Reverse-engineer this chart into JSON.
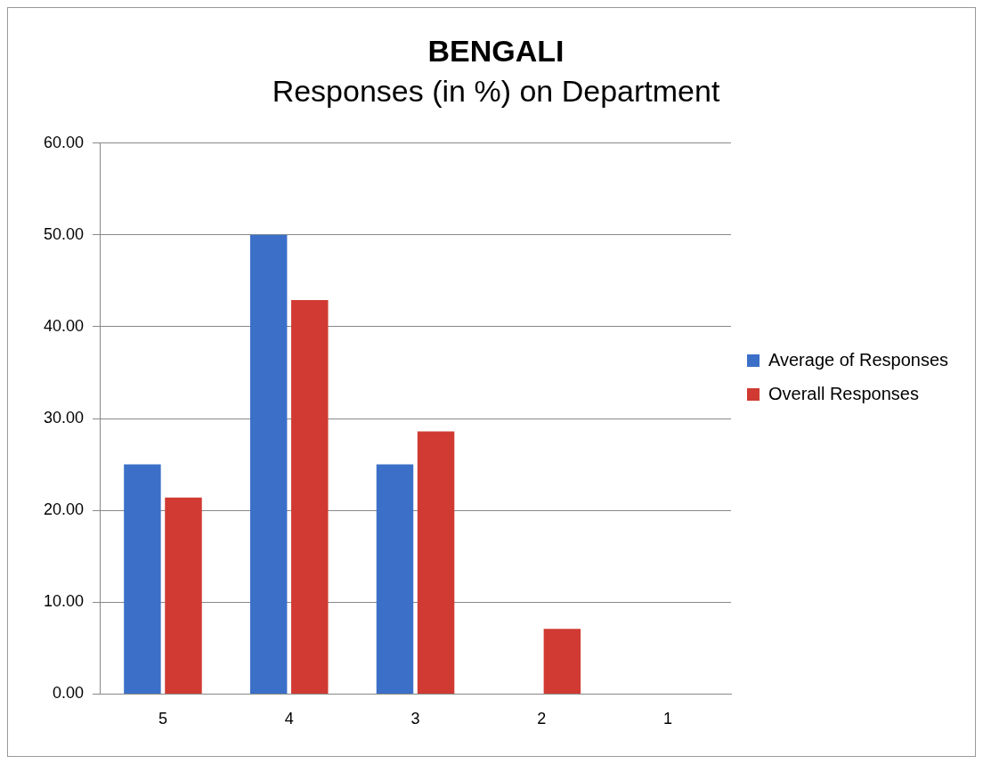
{
  "chart_data": {
    "type": "bar",
    "title": "BENGALI",
    "subtitle": "Responses (in %) on Department",
    "categories": [
      "5",
      "4",
      "3",
      "2",
      "1"
    ],
    "series": [
      {
        "name": "Average of Responses",
        "color": "#3c70c8",
        "values": [
          25,
          50,
          25,
          0,
          0
        ]
      },
      {
        "name": "Overall Responses",
        "color": "#d03a32",
        "values": [
          21.4,
          42.9,
          28.6,
          7.1,
          0
        ]
      }
    ],
    "ylim": [
      0,
      60
    ],
    "yticks": [
      {
        "value": 0,
        "label": "0.00"
      },
      {
        "value": 10,
        "label": "10.00"
      },
      {
        "value": 20,
        "label": "20.00"
      },
      {
        "value": 30,
        "label": "30.00"
      },
      {
        "value": 40,
        "label": "40.00"
      },
      {
        "value": 50,
        "label": "50.00"
      },
      {
        "value": 60,
        "label": "60.00"
      }
    ],
    "grid": "y",
    "legend": "right"
  }
}
